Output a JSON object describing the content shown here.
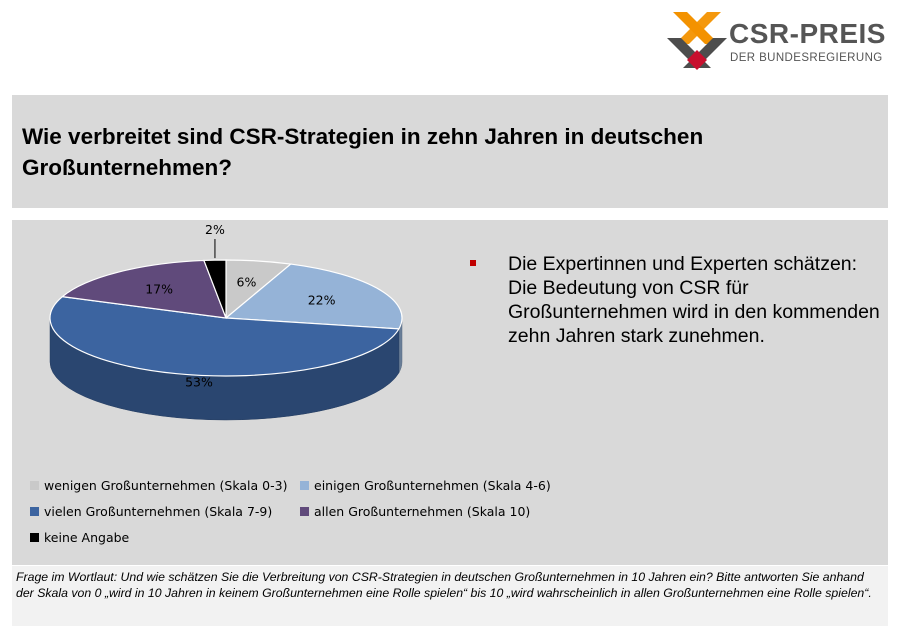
{
  "logo": {
    "title": "CSR-PREIS",
    "subtitle": "DER BUNDESREGIERUNG",
    "colors": {
      "orange": "#f39200",
      "dark": "#4d4d4d",
      "red": "#c8102e"
    }
  },
  "title": "Wie verbreitet sind CSR-Strategien in zehn Jahren in deutschen Großunternehmen?",
  "bullet": "Die Expertinnen und Experten schätzen: Die Bedeutung von CSR für Großunternehmen wird in den kommenden zehn Jahren stark zunehmen.",
  "chart_data": {
    "type": "pie",
    "style": "3d",
    "title": "",
    "slices": [
      {
        "label": "wenigen Großunternehmen (Skala 0-3)",
        "value": 6,
        "display": "6%",
        "color": "#c9c9c9"
      },
      {
        "label": "einigen Großunternehmen (Skala 4-6)",
        "value": 22,
        "display": "22%",
        "color": "#95b3d7"
      },
      {
        "label": "vielen Großunternehmen (Skala 7-9)",
        "value": 53,
        "display": "53%",
        "color": "#3c64a0"
      },
      {
        "label": "allen Großunternehmen (Skala 10)",
        "value": 17,
        "display": "17%",
        "color": "#604a7b"
      },
      {
        "label": "keine Angabe",
        "value": 2,
        "display": "2%",
        "color": "#000000"
      }
    ],
    "legend_position": "bottom"
  },
  "footer": "Frage im Wortlaut: Und wie schätzen Sie die Verbreitung von CSR-Strategien in deutschen Großunternehmen in 10 Jahren ein? Bitte antworten Sie anhand der Skala von 0 „wird in 10 Jahren in keinem Großunternehmen eine Rolle spielen“ bis 10 „wird wahrscheinlich in allen Großunternehmen eine Rolle spielen“."
}
